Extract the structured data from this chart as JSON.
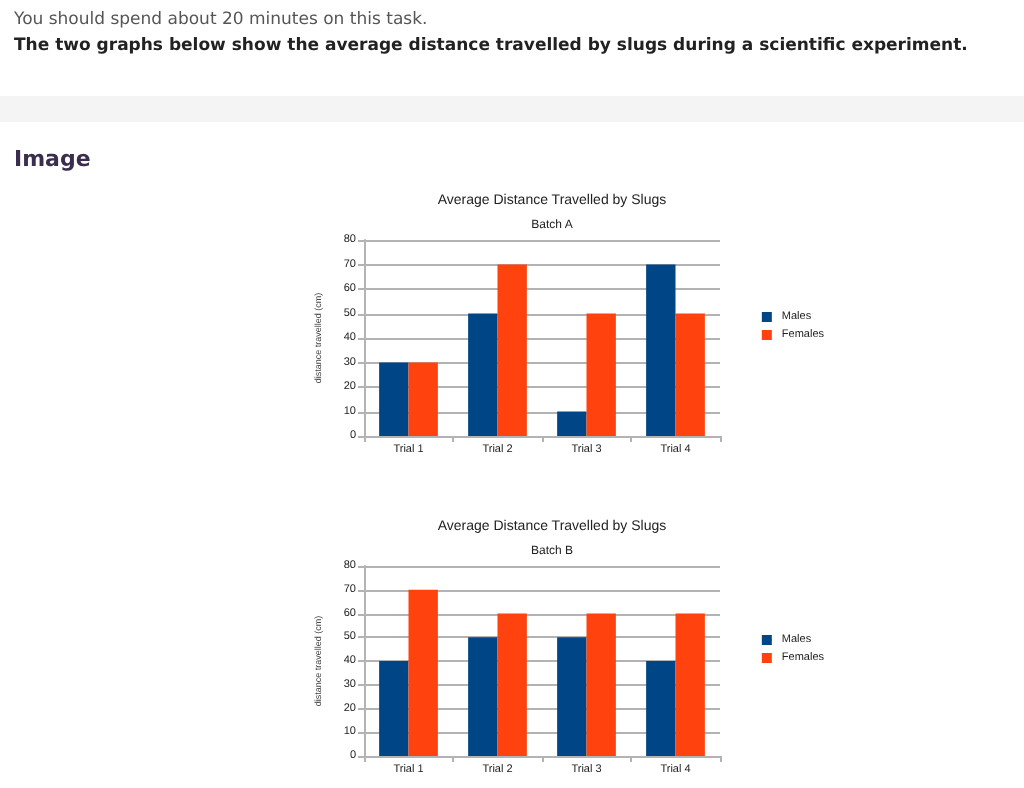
{
  "chart_data": [
    {
      "type": "bar",
      "title": "Average Distance Travelled by Slugs",
      "subtitle": "Batch A",
      "ylabel": "distance travelled (cm)",
      "annotations": [
        "You should spend about 20 minutes on this task.",
        "The two graphs below show the average distance travelled by slugs during a scientific experiment.",
        "Image"
      ],
      "categories": [
        "Trial 1",
        "Trial 2",
        "Trial 3",
        "Trial 4"
      ],
      "series": [
        {
          "name": "Males",
          "color": "#004586",
          "values": [
            30,
            50,
            10,
            70
          ]
        },
        {
          "name": "Females",
          "color": "#ff420e",
          "values": [
            30,
            70,
            50,
            50
          ]
        }
      ],
      "ylim": [
        0,
        80
      ],
      "yticks": [
        0,
        10,
        20,
        30,
        40,
        50,
        60,
        70,
        80
      ],
      "grid": "y",
      "legend": "right"
    },
    {
      "type": "bar",
      "title": "Average Distance Travelled by Slugs",
      "subtitle": "Batch B",
      "ylabel": "distance travelled (cm)",
      "categories": [
        "Trial 1",
        "Trial 2",
        "Trial 3",
        "Trial 4"
      ],
      "series": [
        {
          "name": "Males",
          "color": "#004586",
          "values": [
            40,
            50,
            50,
            40
          ]
        },
        {
          "name": "Females",
          "color": "#ff420e",
          "values": [
            70,
            60,
            60,
            60
          ]
        }
      ],
      "ylim": [
        0,
        80
      ],
      "yticks": [
        0,
        10,
        20,
        30,
        40,
        50,
        60,
        70,
        80
      ],
      "grid": "y",
      "legend": "right"
    }
  ]
}
